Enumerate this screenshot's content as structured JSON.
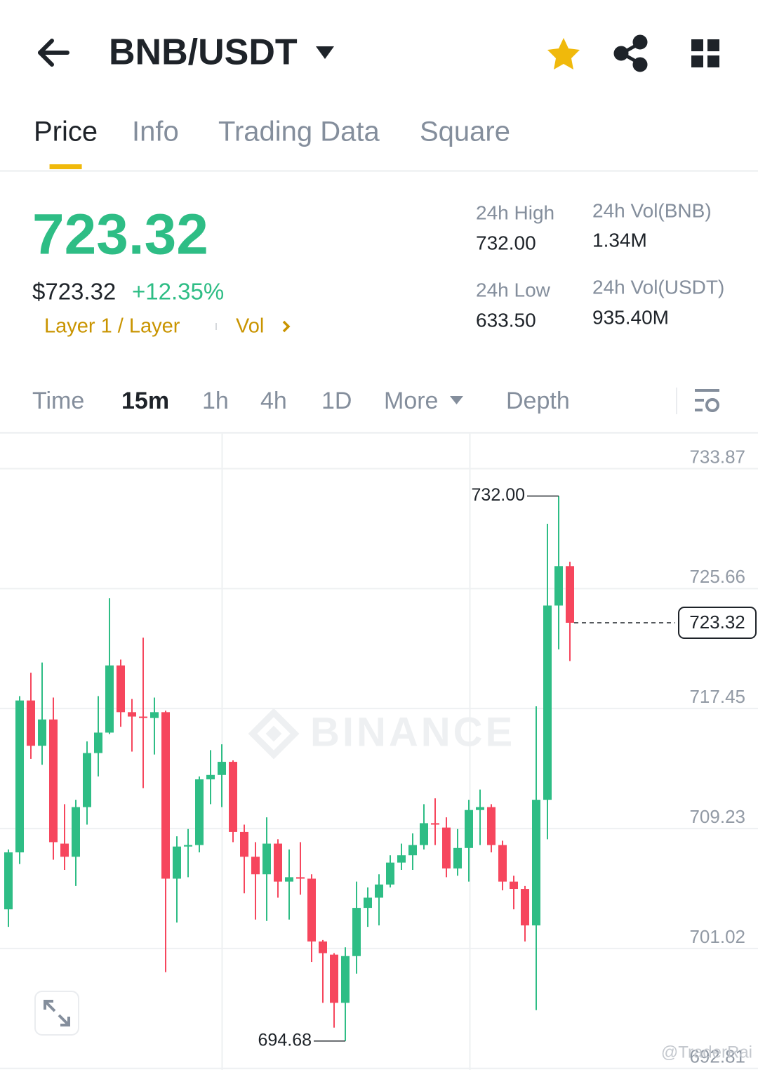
{
  "header": {
    "pair": "BNB/USDT"
  },
  "tabs": [
    "Price",
    "Info",
    "Trading Data",
    "Square"
  ],
  "active_tab": 0,
  "price": {
    "last": "723.32",
    "usd": "$723.32",
    "change": "+12.35%",
    "tags": [
      "Layer 1 / Layer",
      "Vol"
    ]
  },
  "stats": [
    {
      "label": "24h High",
      "value": "732.00"
    },
    {
      "label": "24h Vol(BNB)",
      "value": "1.34M"
    },
    {
      "label": "24h Low",
      "value": "633.50"
    },
    {
      "label": "24h Vol(USDT)",
      "value": "935.40M"
    }
  ],
  "intervals": [
    "Time",
    "15m",
    "1h",
    "4h",
    "1D",
    "More",
    "Depth"
  ],
  "active_interval": 1,
  "watermarks": [
    "BINANCE",
    "@TraderRai"
  ],
  "chart_data": {
    "type": "candlestick",
    "up_color": "#2ebd85",
    "down_color": "#f6465d",
    "open": [
      703.7,
      707.6,
      718.0,
      714.9,
      716.7,
      708.2,
      707.3,
      710.7,
      714.4,
      715.8,
      720.4,
      717.2,
      716.9,
      716.8,
      717.2,
      705.8,
      708.0,
      708.1,
      712.6,
      712.9,
      713.8,
      709.0,
      707.3,
      706.1,
      708.2,
      705.6,
      705.9,
      705.8,
      701.5,
      700.6,
      697.3,
      700.5,
      703.8,
      704.5,
      705.4,
      706.9,
      707.4,
      708.1,
      709.6,
      709.3,
      706.5,
      707.9,
      710.5,
      710.7,
      708.1,
      705.6,
      705.1,
      702.6,
      711.2,
      724.5,
      727.2
    ],
    "high": [
      707.8,
      718.3,
      719.9,
      720.6,
      718.2,
      710.9,
      711.2,
      715.2,
      718.3,
      725.0,
      720.8,
      718.1,
      722.3,
      718.2,
      717.3,
      708.7,
      709.2,
      712.8,
      714.6,
      715.0,
      713.9,
      709.5,
      708.3,
      710.0,
      708.5,
      707.8,
      708.3,
      706.1,
      701.6,
      700.7,
      701.1,
      705.6,
      705.2,
      706.1,
      707.4,
      708.2,
      708.9,
      710.9,
      711.3,
      710.0,
      709.2,
      711.2,
      711.9,
      710.9,
      708.4,
      706.0,
      705.3,
      717.6,
      730.1,
      732.0,
      727.5
    ],
    "low": [
      702.5,
      706.8,
      714.0,
      713.6,
      707.1,
      706.4,
      705.3,
      709.5,
      712.8,
      715.7,
      716.2,
      714.5,
      712.0,
      714.3,
      699.4,
      702.8,
      705.9,
      707.6,
      710.9,
      710.7,
      708.3,
      704.8,
      703.0,
      702.9,
      704.5,
      703.0,
      704.7,
      700.1,
      697.3,
      695.6,
      694.68,
      699.3,
      702.5,
      702.6,
      705.2,
      706.4,
      706.4,
      707.8,
      708.1,
      705.9,
      706.0,
      705.6,
      708.1,
      707.6,
      705.0,
      703.7,
      701.5,
      696.8,
      708.5,
      721.5,
      720.7
    ],
    "close": [
      707.6,
      718.0,
      714.9,
      716.7,
      708.3,
      707.3,
      710.7,
      714.4,
      715.8,
      720.4,
      717.2,
      716.9,
      716.8,
      717.2,
      705.8,
      708.0,
      708.1,
      712.6,
      712.9,
      713.8,
      709.0,
      707.3,
      706.1,
      708.2,
      705.6,
      705.9,
      705.8,
      701.5,
      700.7,
      697.3,
      700.5,
      703.8,
      704.5,
      705.4,
      706.9,
      707.4,
      708.1,
      709.6,
      709.5,
      706.5,
      707.9,
      710.5,
      710.7,
      708.1,
      705.6,
      705.1,
      702.6,
      711.2,
      724.5,
      727.2,
      723.32
    ],
    "ylim": [
      692.7,
      736.3
    ],
    "yticks": [
      733.87,
      725.66,
      717.45,
      709.23,
      701.02,
      692.81
    ],
    "grid": true,
    "last_price": 723.32,
    "annotations": [
      {
        "value": 732,
        "label": "732.00"
      },
      {
        "value": 694.68,
        "label": "694.68"
      }
    ]
  }
}
